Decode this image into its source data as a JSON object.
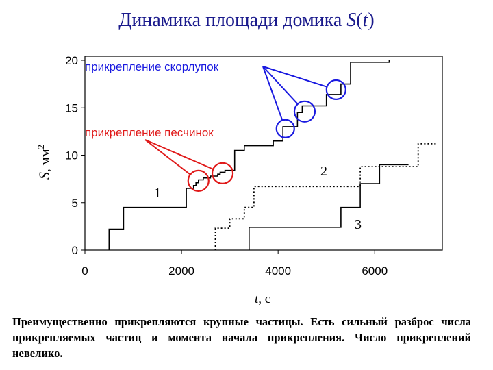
{
  "title": {
    "text": "Динамика площади домика ",
    "var": "S",
    "open": "(",
    "arg": "t",
    "close": ")"
  },
  "caption": "Преимущественно прикрепляются крупные частицы. Есть сильный разброс числа прикрепляемых частиц и момента начала прикрепления. Число прикреплений невелико.",
  "colors": {
    "annotation_blue": "#1a1ae0",
    "annotation_red": "#e01a1a",
    "title": "#1a1a8c"
  },
  "chart_data": {
    "type": "line",
    "step": true,
    "xlabel": {
      "var": "t",
      "unit": ", с"
    },
    "ylabel": {
      "var": "S",
      "unit": ", мм",
      "sup": "2"
    },
    "xlim": [
      0,
      7400
    ],
    "ylim": [
      0,
      20
    ],
    "xticks": [
      0,
      2000,
      4000,
      6000
    ],
    "yticks": [
      0,
      5,
      10,
      15,
      20
    ],
    "grid": false,
    "series": [
      {
        "name": "1",
        "style": "solid",
        "points": [
          [
            500,
            0
          ],
          [
            500,
            2.2
          ],
          [
            800,
            2.2
          ],
          [
            800,
            4.5
          ],
          [
            2100,
            4.5
          ],
          [
            2100,
            6.5
          ],
          [
            2250,
            6.5
          ],
          [
            2250,
            6.8
          ],
          [
            2300,
            6.8
          ],
          [
            2300,
            7.1
          ],
          [
            2350,
            7.1
          ],
          [
            2350,
            7.4
          ],
          [
            2450,
            7.4
          ],
          [
            2450,
            7.6
          ],
          [
            2600,
            7.6
          ],
          [
            2600,
            7.8
          ],
          [
            2750,
            7.8
          ],
          [
            2750,
            8.0
          ],
          [
            2800,
            8.0
          ],
          [
            2800,
            8.2
          ],
          [
            2900,
            8.2
          ],
          [
            2900,
            8.4
          ],
          [
            3100,
            8.4
          ],
          [
            3100,
            10.5
          ],
          [
            3300,
            10.5
          ],
          [
            3300,
            11
          ],
          [
            3900,
            11
          ],
          [
            3900,
            11.5
          ],
          [
            4100,
            11.5
          ],
          [
            4100,
            13
          ],
          [
            4400,
            13
          ],
          [
            4400,
            14.5
          ],
          [
            4500,
            14.5
          ],
          [
            4500,
            15.2
          ],
          [
            5000,
            15.2
          ],
          [
            5000,
            16.4
          ],
          [
            5300,
            16.4
          ],
          [
            5300,
            17.5
          ],
          [
            5500,
            17.5
          ],
          [
            5500,
            19.8
          ],
          [
            6300,
            19.8
          ],
          [
            6300,
            20
          ]
        ]
      },
      {
        "name": "2",
        "style": "dotted",
        "points": [
          [
            2700,
            0
          ],
          [
            2700,
            2.3
          ],
          [
            3000,
            2.3
          ],
          [
            3000,
            3.3
          ],
          [
            3300,
            3.3
          ],
          [
            3300,
            4.5
          ],
          [
            3500,
            4.5
          ],
          [
            3500,
            6.7
          ],
          [
            5700,
            6.7
          ],
          [
            5700,
            8.8
          ],
          [
            6900,
            8.8
          ],
          [
            6900,
            11.2
          ],
          [
            7300,
            11.2
          ]
        ]
      },
      {
        "name": "3",
        "style": "solid",
        "points": [
          [
            3400,
            0
          ],
          [
            3400,
            2.4
          ],
          [
            5300,
            2.4
          ],
          [
            5300,
            4.5
          ],
          [
            5700,
            4.5
          ],
          [
            5700,
            7
          ],
          [
            6100,
            7
          ],
          [
            6100,
            9
          ],
          [
            6700,
            9
          ]
        ]
      }
    ],
    "annotations": [
      {
        "label": "прикрепление скорлупок",
        "color": "blue"
      },
      {
        "label": "прикрепление песчинок",
        "color": "red"
      }
    ]
  }
}
